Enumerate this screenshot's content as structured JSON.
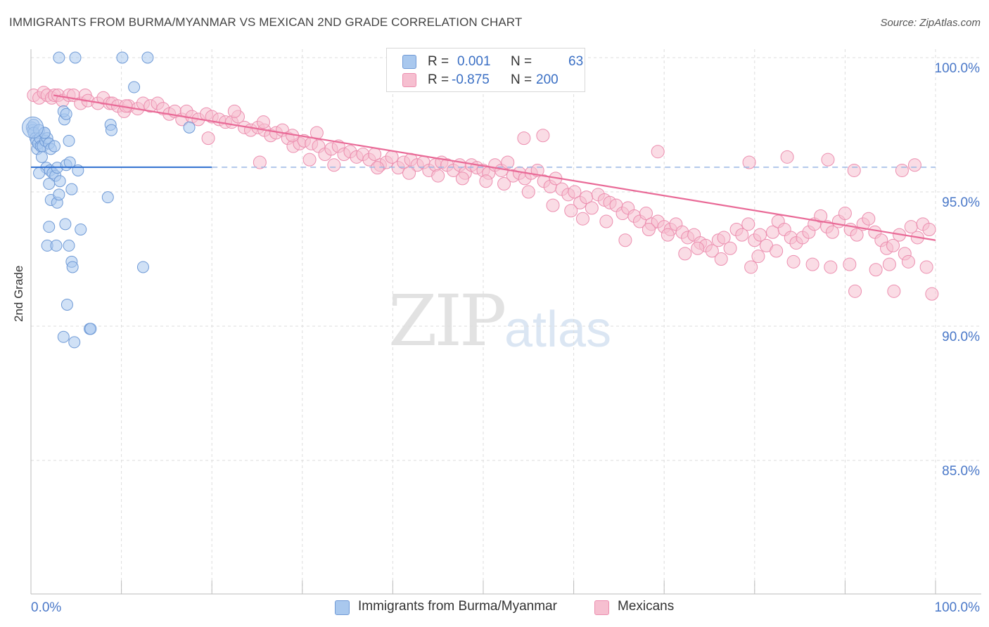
{
  "title": "IMMIGRANTS FROM BURMA/MYANMAR VS MEXICAN 2ND GRADE CORRELATION CHART",
  "source": "Source: ZipAtlas.com",
  "watermark": {
    "zip": "ZIP",
    "atlas": "atlas"
  },
  "legend": {
    "rows": [
      {
        "r_label": "R =",
        "r_value": "0.001",
        "n_label": "N =",
        "n_value": "63"
      },
      {
        "r_label": "R =",
        "r_value": "-0.875",
        "n_label": "N =",
        "n_value": "200"
      }
    ]
  },
  "bottom_legend": [
    "Immigrants from Burma/Myanmar",
    "Mexicans"
  ],
  "colors": {
    "blue_fill": "#a9c8ee",
    "blue_stroke": "#6f9ad6",
    "blue_line": "#2f6fd0",
    "pink_fill": "#f6bfd0",
    "pink_stroke": "#ec8eaf",
    "pink_line": "#e96a97",
    "tick_label": "#4a78c8",
    "grid": "#dddddd"
  },
  "chart_data": {
    "type": "scatter",
    "title": "IMMIGRANTS FROM BURMA/MYANMAR VS MEXICAN 2ND GRADE CORRELATION CHART",
    "xlabel": "",
    "ylabel": "2nd Grade",
    "xlim": [
      0,
      100
    ],
    "ylim": [
      80.0,
      100.6
    ],
    "x_tick_labels": [
      "0.0%",
      "100.0%"
    ],
    "y_ticks": [
      100.0,
      95.0,
      90.0,
      85.0
    ],
    "y_tick_labels": [
      "100.0%",
      "95.0%",
      "90.0%",
      "85.0%"
    ],
    "grid": true,
    "legend_position": "top-center",
    "series": [
      {
        "name": "Immigrants from Burma/Myanmar",
        "R": 0.001,
        "N": 63,
        "trend": {
          "x": [
            0,
            20
          ],
          "y": [
            95.92,
            95.92
          ],
          "dashed_extension_to": 100
        },
        "points": [
          [
            0.1,
            97.4
          ],
          [
            0.2,
            97.3
          ],
          [
            0.3,
            97.5
          ],
          [
            0.3,
            97.2
          ],
          [
            0.5,
            97.0
          ],
          [
            0.6,
            96.9
          ],
          [
            0.7,
            96.6
          ],
          [
            0.8,
            96.8
          ],
          [
            0.9,
            97.3
          ],
          [
            1.0,
            97.0
          ],
          [
            1.1,
            96.7
          ],
          [
            1.2,
            96.3
          ],
          [
            1.3,
            96.7
          ],
          [
            1.5,
            97.2
          ],
          [
            1.6,
            96.9
          ],
          [
            1.8,
            97.0
          ],
          [
            2.0,
            96.8
          ],
          [
            2.2,
            96.6
          ],
          [
            1.7,
            95.9
          ],
          [
            2.1,
            95.8
          ],
          [
            2.4,
            95.7
          ],
          [
            2.7,
            95.6
          ],
          [
            2.9,
            95.9
          ],
          [
            0.9,
            95.7
          ],
          [
            2.0,
            95.3
          ],
          [
            3.2,
            95.4
          ],
          [
            3.9,
            96.0
          ],
          [
            4.3,
            96.1
          ],
          [
            4.2,
            96.9
          ],
          [
            5.2,
            95.8
          ],
          [
            3.7,
            97.7
          ],
          [
            3.6,
            98.0
          ],
          [
            3.9,
            97.9
          ],
          [
            1.5,
            97.2
          ],
          [
            2.6,
            96.7
          ],
          [
            2.2,
            94.7
          ],
          [
            2.9,
            94.6
          ],
          [
            3.1,
            94.9
          ],
          [
            4.5,
            95.1
          ],
          [
            2.0,
            93.7
          ],
          [
            3.8,
            93.8
          ],
          [
            5.5,
            93.6
          ],
          [
            1.8,
            93.0
          ],
          [
            2.8,
            93.0
          ],
          [
            4.2,
            93.0
          ],
          [
            4.5,
            92.4
          ],
          [
            4.6,
            92.2
          ],
          [
            4.0,
            90.8
          ],
          [
            3.6,
            89.6
          ],
          [
            4.8,
            89.4
          ],
          [
            6.5,
            89.9
          ],
          [
            6.6,
            89.9
          ],
          [
            8.8,
            97.5
          ],
          [
            8.9,
            97.3
          ],
          [
            8.5,
            94.8
          ],
          [
            12.4,
            92.2
          ],
          [
            11.4,
            98.9
          ],
          [
            17.5,
            97.4
          ],
          [
            3.1,
            100.0
          ],
          [
            4.9,
            100.0
          ],
          [
            10.1,
            100.0
          ],
          [
            12.9,
            100.0
          ],
          [
            0.2,
            97.4
          ]
        ]
      },
      {
        "name": "Mexicans",
        "R": -0.875,
        "N": 200,
        "trend": {
          "x": [
            2.5,
            100
          ],
          "y": [
            98.6,
            93.2
          ]
        },
        "points": [
          [
            0.3,
            98.6
          ],
          [
            0.9,
            98.5
          ],
          [
            1.4,
            98.7
          ],
          [
            1.8,
            98.6
          ],
          [
            2.3,
            98.5
          ],
          [
            2.6,
            98.6
          ],
          [
            3.0,
            98.6
          ],
          [
            3.5,
            98.4
          ],
          [
            4.2,
            98.6
          ],
          [
            4.7,
            98.6
          ],
          [
            5.5,
            98.3
          ],
          [
            6.0,
            98.6
          ],
          [
            6.3,
            98.4
          ],
          [
            7.4,
            98.3
          ],
          [
            8.0,
            98.5
          ],
          [
            8.7,
            98.3
          ],
          [
            9.0,
            98.3
          ],
          [
            9.6,
            98.2
          ],
          [
            10.3,
            98.0
          ],
          [
            10.8,
            98.2
          ],
          [
            11.8,
            98.1
          ],
          [
            12.4,
            98.3
          ],
          [
            13.2,
            98.2
          ],
          [
            14.0,
            98.3
          ],
          [
            14.6,
            98.1
          ],
          [
            15.3,
            97.9
          ],
          [
            15.9,
            98.0
          ],
          [
            16.7,
            97.7
          ],
          [
            17.2,
            98.0
          ],
          [
            17.8,
            97.8
          ],
          [
            18.5,
            97.7
          ],
          [
            19.4,
            97.9
          ],
          [
            20.0,
            97.8
          ],
          [
            20.8,
            97.7
          ],
          [
            21.5,
            97.6
          ],
          [
            22.2,
            97.6
          ],
          [
            22.9,
            97.8
          ],
          [
            23.6,
            97.4
          ],
          [
            24.3,
            97.3
          ],
          [
            25.1,
            97.4
          ],
          [
            25.8,
            97.3
          ],
          [
            26.5,
            97.1
          ],
          [
            27.1,
            97.2
          ],
          [
            27.8,
            97.3
          ],
          [
            28.4,
            97.0
          ],
          [
            29.0,
            96.7
          ],
          [
            29.7,
            96.8
          ],
          [
            30.2,
            96.9
          ],
          [
            31.0,
            96.8
          ],
          [
            31.8,
            96.7
          ],
          [
            32.5,
            96.4
          ],
          [
            33.2,
            96.6
          ],
          [
            34.0,
            96.7
          ],
          [
            34.6,
            96.4
          ],
          [
            35.3,
            96.5
          ],
          [
            36.0,
            96.3
          ],
          [
            36.7,
            96.4
          ],
          [
            37.4,
            96.2
          ],
          [
            38.0,
            96.4
          ],
          [
            38.6,
            96.0
          ],
          [
            39.3,
            96.1
          ],
          [
            39.9,
            96.3
          ],
          [
            40.6,
            95.9
          ],
          [
            41.2,
            96.1
          ],
          [
            42.0,
            96.2
          ],
          [
            42.7,
            96.0
          ],
          [
            43.4,
            96.1
          ],
          [
            44.0,
            95.8
          ],
          [
            44.7,
            96.0
          ],
          [
            45.4,
            96.1
          ],
          [
            46.0,
            96.0
          ],
          [
            46.7,
            95.8
          ],
          [
            47.4,
            96.0
          ],
          [
            48.0,
            95.7
          ],
          [
            48.7,
            96.0
          ],
          [
            49.3,
            95.9
          ],
          [
            50.0,
            95.8
          ],
          [
            50.6,
            95.7
          ],
          [
            51.3,
            96.0
          ],
          [
            52.0,
            95.8
          ],
          [
            52.7,
            96.1
          ],
          [
            53.3,
            95.6
          ],
          [
            54.0,
            95.7
          ],
          [
            54.6,
            95.5
          ],
          [
            55.3,
            95.7
          ],
          [
            56.0,
            95.8
          ],
          [
            56.7,
            95.4
          ],
          [
            57.4,
            95.2
          ],
          [
            58.0,
            95.5
          ],
          [
            58.7,
            95.1
          ],
          [
            59.4,
            94.9
          ],
          [
            60.1,
            95.0
          ],
          [
            60.7,
            94.6
          ],
          [
            61.4,
            94.8
          ],
          [
            62.0,
            94.4
          ],
          [
            62.7,
            94.9
          ],
          [
            63.4,
            94.7
          ],
          [
            64.0,
            94.6
          ],
          [
            64.7,
            94.5
          ],
          [
            65.4,
            94.2
          ],
          [
            66.0,
            94.4
          ],
          [
            66.7,
            94.1
          ],
          [
            67.3,
            93.9
          ],
          [
            68.0,
            94.2
          ],
          [
            68.6,
            93.8
          ],
          [
            69.3,
            93.9
          ],
          [
            70.0,
            93.7
          ],
          [
            70.7,
            93.6
          ],
          [
            71.3,
            93.8
          ],
          [
            72.0,
            93.5
          ],
          [
            72.6,
            93.3
          ],
          [
            73.3,
            93.4
          ],
          [
            74.0,
            93.1
          ],
          [
            74.6,
            93.0
          ],
          [
            75.3,
            92.8
          ],
          [
            76.0,
            93.2
          ],
          [
            76.6,
            93.3
          ],
          [
            77.3,
            92.9
          ],
          [
            78.0,
            93.6
          ],
          [
            78.6,
            93.4
          ],
          [
            79.3,
            93.8
          ],
          [
            80.0,
            93.2
          ],
          [
            80.6,
            93.4
          ],
          [
            81.3,
            93.0
          ],
          [
            82.0,
            93.5
          ],
          [
            82.6,
            93.9
          ],
          [
            83.3,
            93.6
          ],
          [
            84.0,
            93.3
          ],
          [
            84.6,
            93.1
          ],
          [
            85.3,
            93.3
          ],
          [
            86.0,
            93.5
          ],
          [
            86.6,
            93.8
          ],
          [
            87.3,
            94.1
          ],
          [
            88.0,
            93.7
          ],
          [
            88.6,
            93.5
          ],
          [
            89.3,
            93.9
          ],
          [
            90.0,
            94.2
          ],
          [
            90.6,
            93.6
          ],
          [
            91.3,
            93.4
          ],
          [
            92.0,
            93.8
          ],
          [
            92.6,
            94.0
          ],
          [
            93.3,
            93.5
          ],
          [
            94.0,
            93.2
          ],
          [
            94.6,
            92.9
          ],
          [
            95.3,
            93.0
          ],
          [
            96.0,
            93.4
          ],
          [
            96.6,
            92.7
          ],
          [
            97.3,
            93.7
          ],
          [
            98.0,
            93.3
          ],
          [
            98.6,
            93.8
          ],
          [
            99.3,
            93.6
          ],
          [
            10.5,
            98.2
          ],
          [
            19.6,
            97.0
          ],
          [
            25.3,
            96.1
          ],
          [
            30.8,
            96.2
          ],
          [
            33.5,
            96.0
          ],
          [
            38.3,
            95.9
          ],
          [
            41.8,
            95.7
          ],
          [
            45.0,
            95.6
          ],
          [
            47.7,
            95.5
          ],
          [
            50.3,
            95.4
          ],
          [
            52.3,
            95.3
          ],
          [
            55.0,
            95.0
          ],
          [
            57.7,
            94.5
          ],
          [
            59.7,
            94.3
          ],
          [
            61.0,
            94.0
          ],
          [
            63.6,
            93.9
          ],
          [
            65.7,
            93.2
          ],
          [
            68.3,
            93.6
          ],
          [
            70.4,
            93.4
          ],
          [
            72.3,
            92.7
          ],
          [
            73.7,
            92.9
          ],
          [
            76.3,
            92.5
          ],
          [
            79.6,
            92.2
          ],
          [
            80.4,
            92.6
          ],
          [
            82.4,
            92.8
          ],
          [
            84.3,
            92.4
          ],
          [
            86.4,
            92.3
          ],
          [
            88.4,
            92.2
          ],
          [
            90.5,
            92.3
          ],
          [
            93.4,
            92.1
          ],
          [
            94.9,
            92.3
          ],
          [
            97.0,
            92.4
          ],
          [
            99.0,
            92.2
          ],
          [
            91.1,
            91.3
          ],
          [
            95.4,
            91.3
          ],
          [
            99.6,
            91.2
          ],
          [
            54.5,
            97.0
          ],
          [
            56.6,
            97.1
          ],
          [
            69.3,
            96.5
          ],
          [
            79.4,
            96.1
          ],
          [
            83.6,
            96.3
          ],
          [
            88.1,
            96.2
          ],
          [
            91.0,
            95.8
          ],
          [
            96.3,
            95.8
          ],
          [
            97.7,
            96.0
          ],
          [
            22.5,
            98.0
          ],
          [
            25.7,
            97.6
          ],
          [
            28.9,
            97.1
          ],
          [
            31.6,
            97.2
          ]
        ]
      }
    ]
  }
}
